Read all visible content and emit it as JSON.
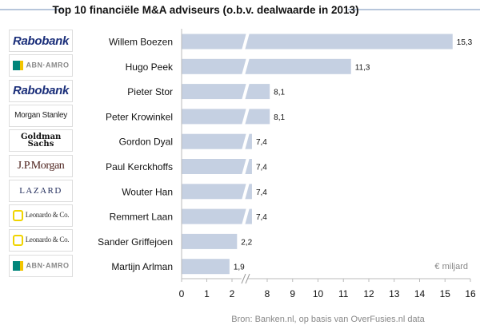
{
  "chart_data": {
    "type": "bar",
    "orientation": "horizontal",
    "title": "Top 10 financiële M&A adviseurs (o.b.v. dealwaarde in 2013)",
    "unit_label": "€ miljard",
    "source": "Bron: Banken.nl, op basis van OverFusies.nl data",
    "categories": [
      "Willem Boezen",
      "Hugo Peek",
      "Pieter Stor",
      "Peter Krowinkel",
      "Gordon Dyal",
      "Paul Kerckhoffs",
      "Wouter Han",
      "Remmert Laan",
      "Sander Griffejoen",
      "Martijn Arlman"
    ],
    "values": [
      15.3,
      11.3,
      8.1,
      8.1,
      7.4,
      7.4,
      7.4,
      7.4,
      2.2,
      1.9
    ],
    "data_labels": [
      "15,3",
      "11,3",
      "8,1",
      "8,1",
      "7,4",
      "7,4",
      "7,4",
      "7,4",
      "2,2",
      "1,9"
    ],
    "firms": [
      "Rabobank",
      "ABN·AMRO",
      "Rabobank",
      "Morgan Stanley",
      "Goldman Sachs",
      "J.P.Morgan",
      "LAZARD",
      "Leonardo & Co.",
      "Leonardo & Co.",
      "ABN·AMRO"
    ],
    "x_ticks": [
      "0",
      "1",
      "2",
      "8",
      "9",
      "10",
      "11",
      "12",
      "13",
      "14",
      "15",
      "16"
    ],
    "x_axis_break": [
      2.5,
      7
    ],
    "xlim": [
      0,
      16
    ],
    "grid": false,
    "bar_color": "#c5d0e2"
  }
}
